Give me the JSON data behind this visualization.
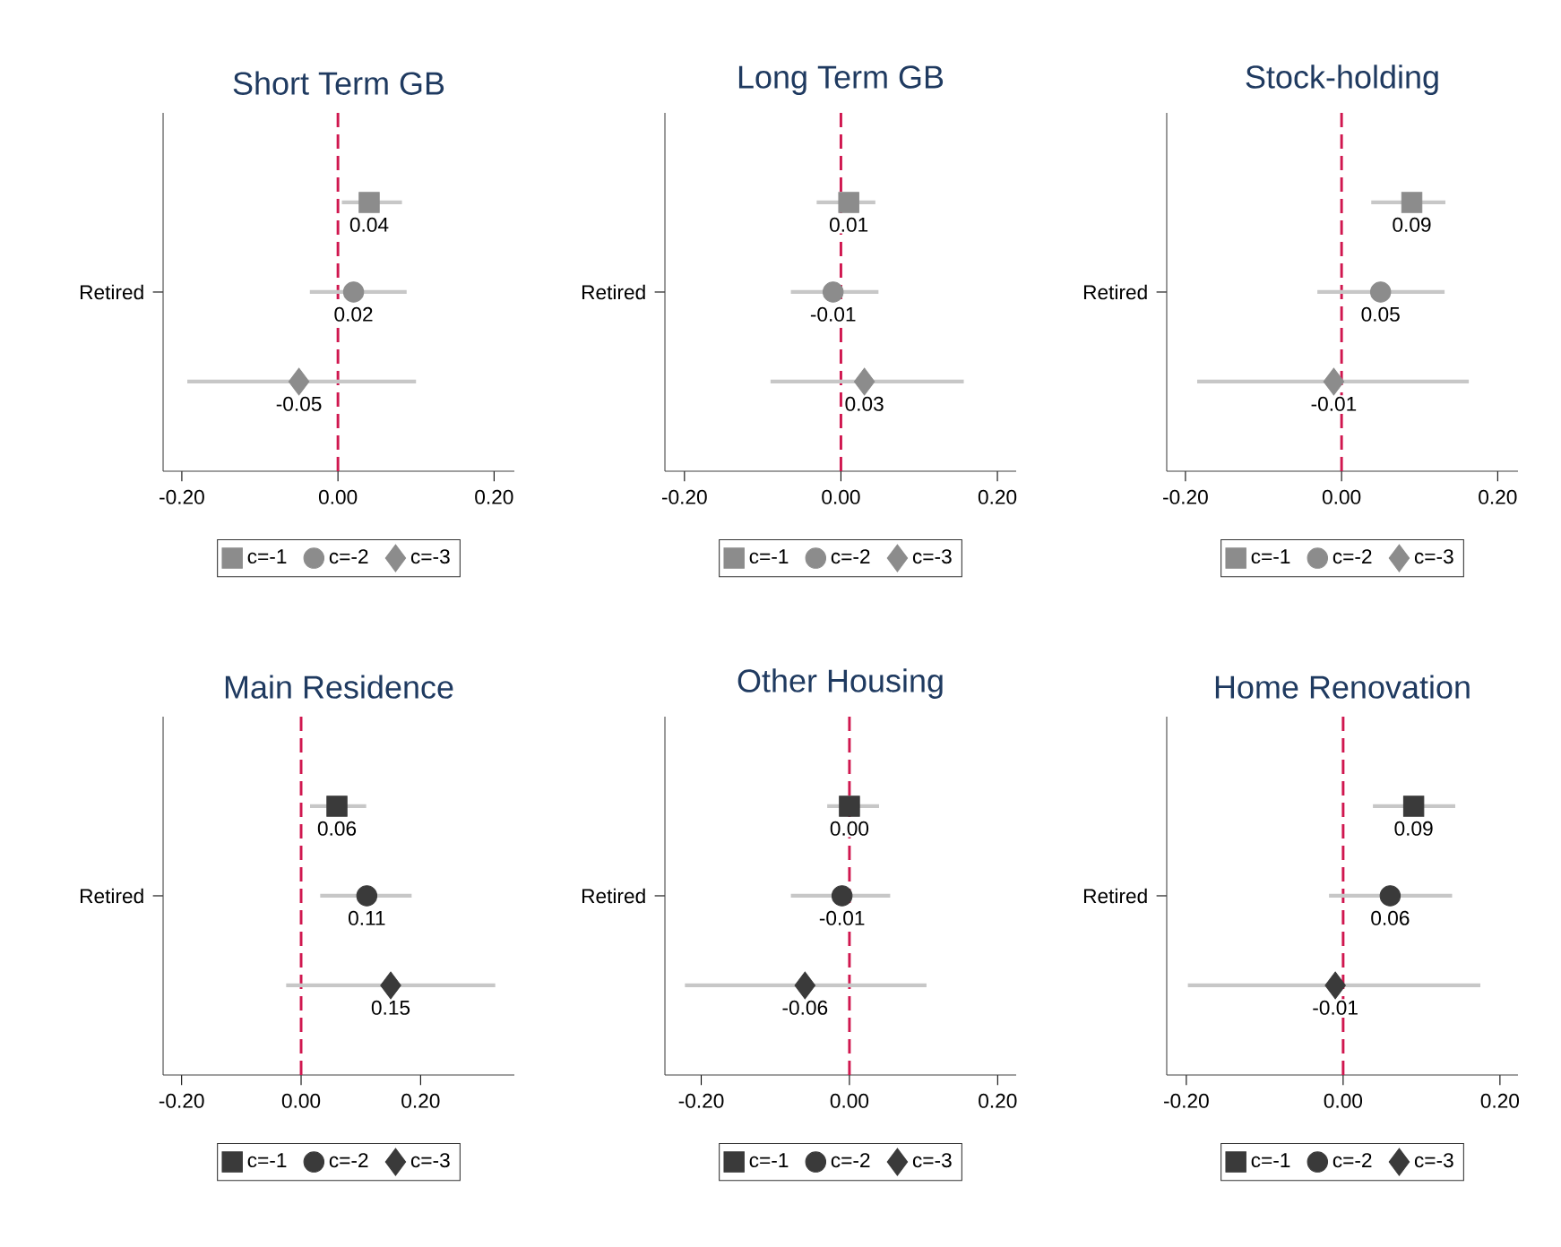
{
  "chart_data": [
    {
      "type": "scatter",
      "orientation": "horizontal",
      "title": "Short Term GB",
      "categories": [
        null,
        "Retired",
        null
      ],
      "xlim": [
        -0.224,
        0.226
      ],
      "xticks": [
        {
          "value": -0.2,
          "label": "-0.20"
        },
        {
          "value": 0,
          "label": "0.00"
        },
        {
          "value": 0.2,
          "label": "0.20"
        }
      ],
      "legend": "bottom",
      "ref_lines": [
        {
          "axis": "x",
          "value": 0,
          "color": "#d0174f",
          "line_style": "dashed"
        }
      ],
      "series": [
        {
          "name": "c=-1",
          "color": "#8c8c8c",
          "marker": "square",
          "values": [
            0.04,
            null,
            null
          ],
          "errors": [
            [
              0.005,
              0.082
            ],
            null,
            null
          ],
          "value_labels": [
            "0.04",
            null,
            null
          ]
        },
        {
          "name": "c=-2",
          "color": "#8c8c8c",
          "marker": "circle",
          "values": [
            null,
            0.02,
            null
          ],
          "errors": [
            null,
            [
              -0.036,
              0.088
            ],
            null
          ],
          "value_labels": [
            null,
            "0.02",
            null
          ]
        },
        {
          "name": "c=-3",
          "color": "#8c8c8c",
          "marker": "diamond",
          "values": [
            null,
            null,
            -0.05
          ],
          "errors": [
            null,
            null,
            [
              -0.193,
              0.1
            ]
          ],
          "value_labels": [
            null,
            null,
            "-0.05"
          ]
        }
      ]
    },
    {
      "type": "scatter",
      "orientation": "horizontal",
      "title": "Long Term GB",
      "categories": [
        null,
        "Retired",
        null
      ],
      "xlim": [
        -0.225,
        0.224
      ],
      "xticks": [
        {
          "value": -0.2,
          "label": "-0.20"
        },
        {
          "value": 0,
          "label": "0.00"
        },
        {
          "value": 0.2,
          "label": "0.20"
        }
      ],
      "legend": "bottom",
      "ref_lines": [
        {
          "axis": "x",
          "value": 0,
          "color": "#d0174f",
          "line_style": "dashed"
        }
      ],
      "series": [
        {
          "name": "c=-1",
          "color": "#8c8c8c",
          "marker": "square",
          "values": [
            0.01,
            null,
            null
          ],
          "errors": [
            [
              -0.031,
              0.044
            ],
            null,
            null
          ],
          "value_labels": [
            "0.01",
            null,
            null
          ]
        },
        {
          "name": "c=-2",
          "color": "#8c8c8c",
          "marker": "circle",
          "values": [
            null,
            -0.01,
            null
          ],
          "errors": [
            null,
            [
              -0.064,
              0.048
            ],
            null
          ],
          "value_labels": [
            null,
            "-0.01",
            null
          ]
        },
        {
          "name": "c=-3",
          "color": "#8c8c8c",
          "marker": "diamond",
          "values": [
            null,
            null,
            0.03
          ],
          "errors": [
            null,
            null,
            [
              -0.09,
              0.157
            ]
          ],
          "value_labels": [
            null,
            null,
            "0.03"
          ]
        }
      ]
    },
    {
      "type": "scatter",
      "orientation": "horizontal",
      "title": "Stock-holding",
      "categories": [
        null,
        "Retired",
        null
      ],
      "xlim": [
        -0.224,
        0.226
      ],
      "xticks": [
        {
          "value": -0.2,
          "label": "-0.20"
        },
        {
          "value": 0,
          "label": "0.00"
        },
        {
          "value": 0.2,
          "label": "0.20"
        }
      ],
      "legend": "bottom",
      "ref_lines": [
        {
          "axis": "x",
          "value": 0,
          "color": "#d0174f",
          "line_style": "dashed"
        }
      ],
      "series": [
        {
          "name": "c=-1",
          "color": "#8c8c8c",
          "marker": "square",
          "values": [
            0.09,
            null,
            null
          ],
          "errors": [
            [
              0.038,
              0.133
            ],
            null,
            null
          ],
          "value_labels": [
            "0.09",
            null,
            null
          ]
        },
        {
          "name": "c=-2",
          "color": "#8c8c8c",
          "marker": "circle",
          "values": [
            null,
            0.05,
            null
          ],
          "errors": [
            null,
            [
              -0.031,
              0.132
            ],
            null
          ],
          "value_labels": [
            null,
            "0.05",
            null
          ]
        },
        {
          "name": "c=-3",
          "color": "#8c8c8c",
          "marker": "diamond",
          "values": [
            null,
            null,
            -0.01
          ],
          "errors": [
            null,
            null,
            [
              -0.185,
              0.163
            ]
          ],
          "value_labels": [
            null,
            null,
            "-0.01"
          ]
        }
      ]
    },
    {
      "type": "scatter",
      "orientation": "horizontal",
      "title": "Main Residence",
      "categories": [
        null,
        "Retired",
        null
      ],
      "xlim": [
        -0.231,
        0.357
      ],
      "xticks": [
        {
          "value": -0.2,
          "label": "-0.20"
        },
        {
          "value": 0,
          "label": "0.00"
        },
        {
          "value": 0.2,
          "label": "0.20"
        }
      ],
      "legend": "bottom",
      "ref_lines": [
        {
          "axis": "x",
          "value": 0,
          "color": "#d0174f",
          "line_style": "dashed"
        }
      ],
      "series": [
        {
          "name": "c=-1",
          "color": "#3a3a3a",
          "marker": "square",
          "values": [
            0.06,
            null,
            null
          ],
          "errors": [
            [
              0.015,
              0.109
            ],
            null,
            null
          ],
          "value_labels": [
            "0.06",
            null,
            null
          ]
        },
        {
          "name": "c=-2",
          "color": "#3a3a3a",
          "marker": "circle",
          "values": [
            null,
            0.11,
            null
          ],
          "errors": [
            null,
            [
              0.032,
              0.185
            ],
            null
          ],
          "value_labels": [
            null,
            "0.11",
            null
          ]
        },
        {
          "name": "c=-3",
          "color": "#3a3a3a",
          "marker": "diamond",
          "values": [
            null,
            null,
            0.15
          ],
          "errors": [
            null,
            null,
            [
              -0.025,
              0.325
            ]
          ],
          "value_labels": [
            null,
            null,
            "0.15"
          ]
        }
      ]
    },
    {
      "type": "scatter",
      "orientation": "horizontal",
      "title": "Other Housing",
      "categories": [
        null,
        "Retired",
        null
      ],
      "xlim": [
        -0.249,
        0.225
      ],
      "xticks": [
        {
          "value": -0.2,
          "label": "-0.20"
        },
        {
          "value": 0,
          "label": "0.00"
        },
        {
          "value": 0.2,
          "label": "0.20"
        }
      ],
      "legend": "bottom",
      "ref_lines": [
        {
          "axis": "x",
          "value": 0,
          "color": "#d0174f",
          "line_style": "dashed"
        }
      ],
      "series": [
        {
          "name": "c=-1",
          "color": "#3a3a3a",
          "marker": "square",
          "values": [
            0.0,
            null,
            null
          ],
          "errors": [
            [
              -0.03,
              0.04
            ],
            null,
            null
          ],
          "value_labels": [
            "0.00",
            null,
            null
          ]
        },
        {
          "name": "c=-2",
          "color": "#3a3a3a",
          "marker": "circle",
          "values": [
            null,
            -0.01,
            null
          ],
          "errors": [
            null,
            [
              -0.079,
              0.055
            ],
            null
          ],
          "value_labels": [
            null,
            "-0.01",
            null
          ]
        },
        {
          "name": "c=-3",
          "color": "#3a3a3a",
          "marker": "diamond",
          "values": [
            null,
            null,
            -0.06
          ],
          "errors": [
            null,
            null,
            [
              -0.222,
              0.104
            ]
          ],
          "value_labels": [
            null,
            null,
            "-0.06"
          ]
        }
      ]
    },
    {
      "type": "scatter",
      "orientation": "horizontal",
      "title": "Home Renovation",
      "categories": [
        null,
        "Retired",
        null
      ],
      "xlim": [
        -0.225,
        0.223
      ],
      "xticks": [
        {
          "value": -0.2,
          "label": "-0.20"
        },
        {
          "value": 0,
          "label": "0.00"
        },
        {
          "value": 0.2,
          "label": "0.20"
        }
      ],
      "legend": "bottom",
      "ref_lines": [
        {
          "axis": "x",
          "value": 0,
          "color": "#d0174f",
          "line_style": "dashed"
        }
      ],
      "series": [
        {
          "name": "c=-1",
          "color": "#3a3a3a",
          "marker": "square",
          "values": [
            0.09,
            null,
            null
          ],
          "errors": [
            [
              0.038,
              0.143
            ],
            null,
            null
          ],
          "value_labels": [
            "0.09",
            null,
            null
          ]
        },
        {
          "name": "c=-2",
          "color": "#3a3a3a",
          "marker": "circle",
          "values": [
            null,
            0.06,
            null
          ],
          "errors": [
            null,
            [
              -0.018,
              0.139
            ],
            null
          ],
          "value_labels": [
            null,
            "0.06",
            null
          ]
        },
        {
          "name": "c=-3",
          "color": "#3a3a3a",
          "marker": "diamond",
          "values": [
            null,
            null,
            -0.01
          ],
          "errors": [
            null,
            null,
            [
              -0.198,
              0.175
            ]
          ],
          "value_labels": [
            null,
            null,
            "-0.01"
          ]
        }
      ]
    }
  ]
}
